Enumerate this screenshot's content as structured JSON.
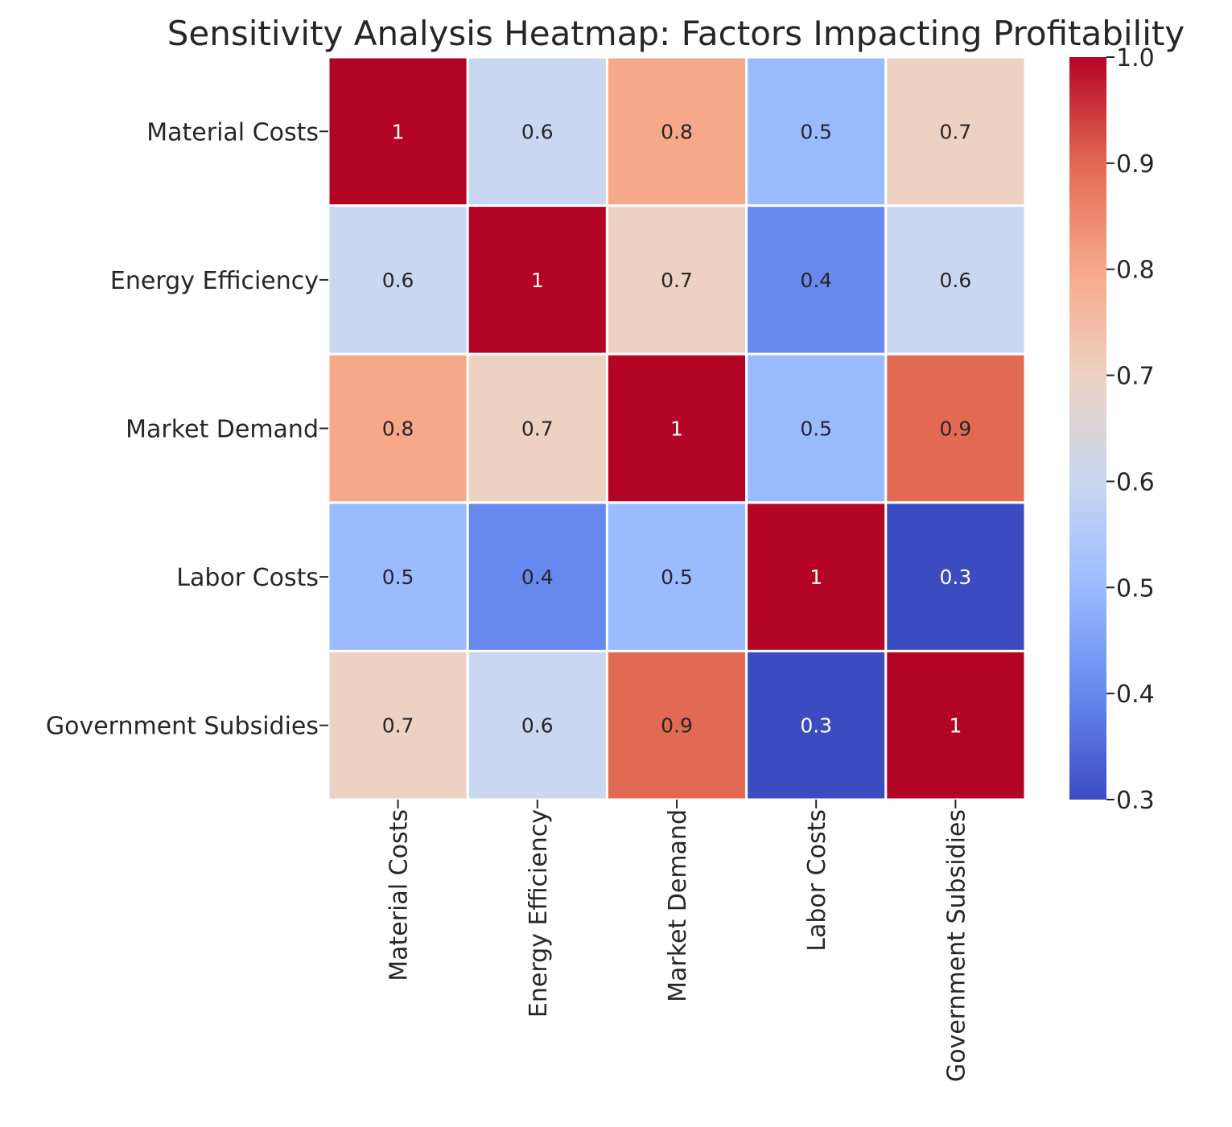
{
  "chart_data": {
    "type": "heatmap",
    "title": "Sensitivity Analysis Heatmap: Factors Impacting Profitability",
    "row_labels": [
      "Material Costs",
      "Energy Efficiency",
      "Market Demand",
      "Labor Costs",
      "Government Subsidies"
    ],
    "column_labels": [
      "Material Costs",
      "Energy Efficiency",
      "Market Demand",
      "Labor Costs",
      "Government Subsidies"
    ],
    "values": [
      [
        1.0,
        0.6,
        0.8,
        0.5,
        0.7
      ],
      [
        0.6,
        1.0,
        0.7,
        0.4,
        0.6
      ],
      [
        0.8,
        0.7,
        1.0,
        0.5,
        0.9
      ],
      [
        0.5,
        0.4,
        0.5,
        1.0,
        0.3
      ],
      [
        0.7,
        0.6,
        0.9,
        0.3,
        1.0
      ]
    ],
    "cell_labels": [
      [
        "1",
        "0.6",
        "0.8",
        "0.5",
        "0.7"
      ],
      [
        "0.6",
        "1",
        "0.7",
        "0.4",
        "0.6"
      ],
      [
        "0.8",
        "0.7",
        "1",
        "0.5",
        "0.9"
      ],
      [
        "0.5",
        "0.4",
        "0.5",
        "1",
        "0.3"
      ],
      [
        "0.7",
        "0.6",
        "0.9",
        "0.3",
        "1"
      ]
    ],
    "colormap": "coolwarm",
    "vmin": 0.3,
    "vmax": 1.0,
    "colorbar_ticks": [
      "0.3",
      "0.4",
      "0.5",
      "0.6",
      "0.7",
      "0.8",
      "0.9",
      "1.0"
    ],
    "xlabel": "",
    "ylabel": "",
    "grid": false,
    "legend": "colorbar right"
  },
  "colors": {
    "coolwarm_stops": [
      "#3b4cc0",
      "#6788ee",
      "#9abbff",
      "#c9d7f0",
      "#edd1c2",
      "#f7a889",
      "#e26952",
      "#b40426"
    ],
    "text_dark": "#262626",
    "text_light": "#ffffff",
    "cell_border": "#ffffff"
  }
}
